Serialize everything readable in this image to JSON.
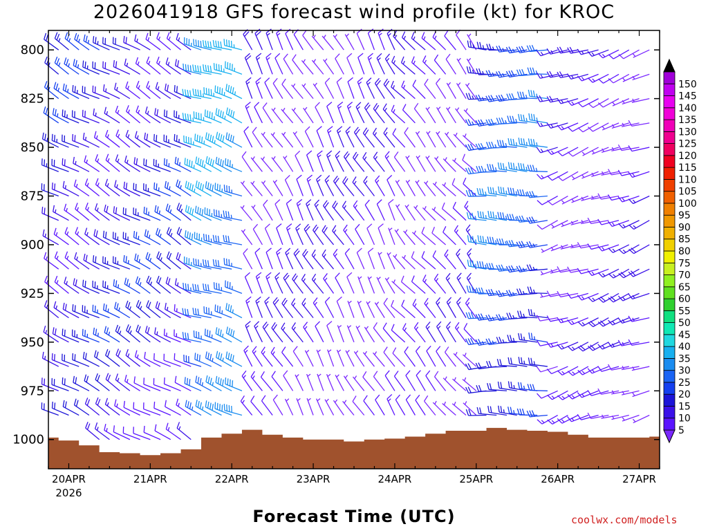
{
  "title": "2026041918 GFS forecast wind profile (kt) for KROC",
  "watermark": "coolwx.com/models",
  "chart_data": {
    "type": "wind-barb-time-height",
    "title": "2026041918 GFS forecast wind profile (kt) for KROC",
    "xlabel": "Forecast Time (UTC)",
    "ylabel": "",
    "y_axis": {
      "ticks": [
        800,
        825,
        850,
        875,
        900,
        925,
        950,
        975,
        1000
      ],
      "range": [
        1015,
        790
      ],
      "inverted": true
    },
    "x_axis": {
      "ticks": [
        {
          "label": "20APR",
          "sublabel": "2026",
          "hour": 6
        },
        {
          "label": "21APR",
          "sublabel": "",
          "hour": 30
        },
        {
          "label": "22APR",
          "sublabel": "",
          "hour": 54
        },
        {
          "label": "23APR",
          "sublabel": "",
          "hour": 78
        },
        {
          "label": "24APR",
          "sublabel": "",
          "hour": 102
        },
        {
          "label": "25APR",
          "sublabel": "",
          "hour": 126
        },
        {
          "label": "26APR",
          "sublabel": "",
          "hour": 150
        },
        {
          "label": "27APR",
          "sublabel": "",
          "hour": 174
        }
      ],
      "range_hours": [
        0,
        180
      ]
    },
    "colorbar": {
      "units": "kt",
      "levels": [
        5,
        10,
        15,
        20,
        25,
        30,
        35,
        40,
        45,
        50,
        55,
        60,
        65,
        70,
        75,
        80,
        85,
        90,
        95,
        100,
        105,
        110,
        115,
        120,
        125,
        130,
        135,
        140,
        145,
        150
      ],
      "colors": [
        "#7a28ff",
        "#5a14ff",
        "#3a10e8",
        "#1c14d8",
        "#1440f0",
        "#1a64f4",
        "#1a8cf0",
        "#18b0f0",
        "#20d8e0",
        "#10e8b4",
        "#10e080",
        "#30d030",
        "#60e020",
        "#90f020",
        "#c8f020",
        "#f0f000",
        "#f0d000",
        "#f0b000",
        "#f09800",
        "#f08000",
        "#f06000",
        "#f04000",
        "#f02000",
        "#f00020",
        "#f00060",
        "#f00090",
        "#f000b8",
        "#f000d8",
        "#e800f0",
        "#c000f0"
      ]
    },
    "terrain_color": "#a0522d",
    "surface_pressure": [
      {
        "hour": 0,
        "p": 999.0
      },
      {
        "hour": 6,
        "p": 1000.5
      },
      {
        "hour": 12,
        "p": 1003.0
      },
      {
        "hour": 18,
        "p": 1006.5
      },
      {
        "hour": 24,
        "p": 1007.0
      },
      {
        "hour": 30,
        "p": 1008.0
      },
      {
        "hour": 36,
        "p": 1007.0
      },
      {
        "hour": 42,
        "p": 1005.0
      },
      {
        "hour": 48,
        "p": 999.0
      },
      {
        "hour": 54,
        "p": 997.0
      },
      {
        "hour": 60,
        "p": 995.0
      },
      {
        "hour": 66,
        "p": 997.5
      },
      {
        "hour": 72,
        "p": 999.0
      },
      {
        "hour": 78,
        "p": 1000.0
      },
      {
        "hour": 84,
        "p": 1000.0
      },
      {
        "hour": 90,
        "p": 1001.0
      },
      {
        "hour": 96,
        "p": 1000.0
      },
      {
        "hour": 102,
        "p": 999.5
      },
      {
        "hour": 108,
        "p": 998.5
      },
      {
        "hour": 114,
        "p": 997.0
      },
      {
        "hour": 120,
        "p": 995.5
      },
      {
        "hour": 126,
        "p": 995.5
      },
      {
        "hour": 132,
        "p": 994.0
      },
      {
        "hour": 138,
        "p": 995.0
      },
      {
        "hour": 144,
        "p": 995.5
      },
      {
        "hour": 150,
        "p": 996.0
      },
      {
        "hour": 156,
        "p": 997.5
      },
      {
        "hour": 162,
        "p": 999.0
      },
      {
        "hour": 168,
        "p": 999.0
      },
      {
        "hour": 174,
        "p": 999.0
      },
      {
        "hour": 180,
        "p": 998.5
      }
    ],
    "wind_regimes": [
      {
        "from_hour": 0,
        "to_hour": 45,
        "direction_deg": 300,
        "speed_kt": 20
      },
      {
        "from_hour": 45,
        "to_hour": 60,
        "direction_deg": 290,
        "speed_kt": 38
      },
      {
        "from_hour": 60,
        "to_hour": 105,
        "direction_deg": 330,
        "speed_kt": 12
      },
      {
        "from_hour": 105,
        "to_hour": 128,
        "direction_deg": 320,
        "speed_kt": 10
      },
      {
        "from_hour": 128,
        "to_hour": 150,
        "direction_deg": 270,
        "speed_kt": 30
      },
      {
        "from_hour": 150,
        "to_hour": 180,
        "direction_deg": 250,
        "speed_kt": 12
      }
    ]
  }
}
